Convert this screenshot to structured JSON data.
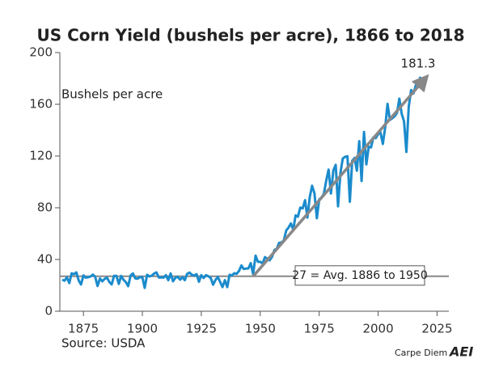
{
  "chart_data": {
    "type": "line",
    "title": "US Corn Yield (bushels per acre), 1866 to 2018",
    "y_label": "Bushels per acre",
    "source": "Source: USDA",
    "credit": "Carpe Diem",
    "logo": "AEI",
    "x": [
      1866,
      1867,
      1868,
      1869,
      1870,
      1871,
      1872,
      1873,
      1874,
      1875,
      1876,
      1877,
      1878,
      1879,
      1880,
      1881,
      1882,
      1883,
      1884,
      1885,
      1886,
      1887,
      1888,
      1889,
      1890,
      1891,
      1892,
      1893,
      1894,
      1895,
      1896,
      1897,
      1898,
      1899,
      1900,
      1901,
      1902,
      1903,
      1904,
      1905,
      1906,
      1907,
      1908,
      1909,
      1910,
      1911,
      1912,
      1913,
      1914,
      1915,
      1916,
      1917,
      1918,
      1919,
      1920,
      1921,
      1922,
      1923,
      1924,
      1925,
      1926,
      1927,
      1928,
      1929,
      1930,
      1931,
      1932,
      1933,
      1934,
      1935,
      1936,
      1937,
      1938,
      1939,
      1940,
      1941,
      1942,
      1943,
      1944,
      1945,
      1946,
      1947,
      1948,
      1949,
      1950,
      1951,
      1952,
      1953,
      1954,
      1955,
      1956,
      1957,
      1958,
      1959,
      1960,
      1961,
      1962,
      1963,
      1964,
      1965,
      1966,
      1967,
      1968,
      1969,
      1970,
      1971,
      1972,
      1973,
      1974,
      1975,
      1976,
      1977,
      1978,
      1979,
      1980,
      1981,
      1982,
      1983,
      1984,
      1985,
      1986,
      1987,
      1988,
      1989,
      1990,
      1991,
      1992,
      1993,
      1994,
      1995,
      1996,
      1997,
      1998,
      1999,
      2000,
      2001,
      2002,
      2003,
      2004,
      2005,
      2006,
      2007,
      2008,
      2009,
      2010,
      2011,
      2012,
      2013,
      2014,
      2015,
      2016,
      2017,
      2018
    ],
    "series": [
      {
        "name": "Corn yield",
        "color": "#1b8bcc",
        "values": [
          24.3,
          23.6,
          26.2,
          21.8,
          29.3,
          28.6,
          30.0,
          23.8,
          20.7,
          27.7,
          25.9,
          26.3,
          26.8,
          28.3,
          26.6,
          19.5,
          25.3,
          23.1,
          25.0,
          26.0,
          22.6,
          20.7,
          27.3,
          27.3,
          21.1,
          27.3,
          24.3,
          22.5,
          19.4,
          27.6,
          29.2,
          25.4,
          25.2,
          26.3,
          26.4,
          18.0,
          28.2,
          26.9,
          27.5,
          29.1,
          30.0,
          26.1,
          26.2,
          26.0,
          27.9,
          24.0,
          29.2,
          23.1,
          25.8,
          26.7,
          24.4,
          26.3,
          24.0,
          28.9,
          29.9,
          28.1,
          27.6,
          28.6,
          22.8,
          27.9,
          25.7,
          27.9,
          27.0,
          25.7,
          20.5,
          24.1,
          26.5,
          22.6,
          18.7,
          24.0,
          18.6,
          28.2,
          27.7,
          29.4,
          28.9,
          31.2,
          35.4,
          32.6,
          33.0,
          33.1,
          37.2,
          28.6,
          43.0,
          38.2,
          38.2,
          36.9,
          41.8,
          40.7,
          39.4,
          42.0,
          47.4,
          48.3,
          52.8,
          53.1,
          54.7,
          62.4,
          64.7,
          67.9,
          62.9,
          74.1,
          73.1,
          80.1,
          79.5,
          85.9,
          72.4,
          88.1,
          97.0,
          91.3,
          71.9,
          86.4,
          88.0,
          90.8,
          101.0,
          109.5,
          91.0,
          108.9,
          113.2,
          81.1,
          106.7,
          118.0,
          119.4,
          119.8,
          84.6,
          116.3,
          118.5,
          108.6,
          131.5,
          100.7,
          138.6,
          113.5,
          127.1,
          126.7,
          134.4,
          133.8,
          136.9,
          138.2,
          129.3,
          142.2,
          160.3,
          147.9,
          149.1,
          150.7,
          153.3,
          164.4,
          152.6,
          146.8,
          123.1,
          158.1,
          171.0,
          168.4,
          174.6,
          176.6,
          181.3
        ]
      }
    ],
    "average": {
      "value": 27,
      "label": "27 = Avg. 1886 to 1950"
    },
    "trend": {
      "x": [
        1947,
        2020
      ],
      "y": [
        27,
        180
      ],
      "color": "#888888"
    },
    "xlim": [
      1865,
      2030
    ],
    "xticks": [
      1875,
      1900,
      1925,
      1950,
      1975,
      2000,
      2025
    ],
    "ylim": [
      0,
      200
    ],
    "yticks": [
      0,
      40,
      80,
      120,
      160,
      200
    ],
    "grid": false
  }
}
